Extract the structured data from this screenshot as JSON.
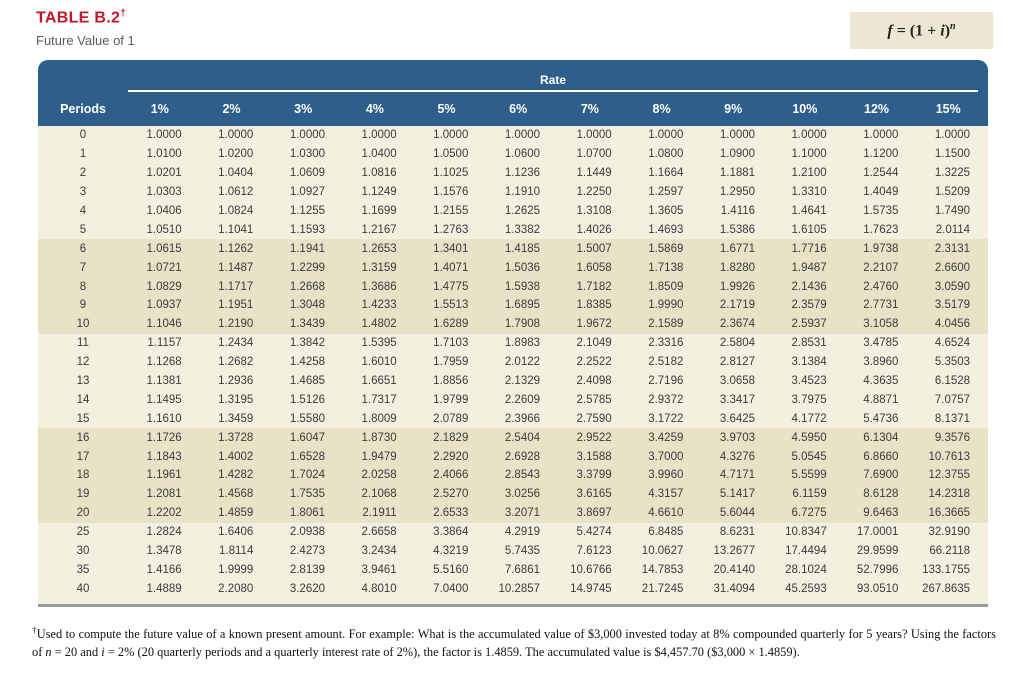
{
  "title": "TABLE B.2",
  "title_dagger": "†",
  "subtitle": "Future Value of 1",
  "formula_segments": [
    {
      "t": "f",
      "i": true
    },
    {
      "t": " = (1 + "
    },
    {
      "t": "i",
      "i": true
    },
    {
      "t": ")"
    },
    {
      "t": "n",
      "i": true,
      "sup": true
    }
  ],
  "colors": {
    "header_blue": "#2e5f8c",
    "title_red": "#c0182a",
    "band_light": "#f3f0e0",
    "band_dark": "#e8e2c7",
    "formula_box_bg": "#ece7d2",
    "bottom_rule_gray": "#97999b"
  },
  "table": {
    "rate_label": "Rate",
    "periods_label": "Periods",
    "rate_headers": [
      "1%",
      "2%",
      "3%",
      "4%",
      "5%",
      "6%",
      "7%",
      "8%",
      "9%",
      "10%",
      "12%",
      "15%"
    ],
    "dark_band_row_indices": [
      [
        6,
        10
      ],
      [
        16,
        20
      ]
    ],
    "rows": [
      {
        "period": "0",
        "values": [
          "1.0000",
          "1.0000",
          "1.0000",
          "1.0000",
          "1.0000",
          "1.0000",
          "1.0000",
          "1.0000",
          "1.0000",
          "1.0000",
          "1.0000",
          "1.0000"
        ]
      },
      {
        "period": "1",
        "values": [
          "1.0100",
          "1.0200",
          "1.0300",
          "1.0400",
          "1.0500",
          "1.0600",
          "1.0700",
          "1.0800",
          "1.0900",
          "1.1000",
          "1.1200",
          "1.1500"
        ]
      },
      {
        "period": "2",
        "values": [
          "1.0201",
          "1.0404",
          "1.0609",
          "1.0816",
          "1.1025",
          "1.1236",
          "1.1449",
          "1.1664",
          "1.1881",
          "1.2100",
          "1.2544",
          "1.3225"
        ]
      },
      {
        "period": "3",
        "values": [
          "1.0303",
          "1.0612",
          "1.0927",
          "1.1249",
          "1.1576",
          "1.1910",
          "1.2250",
          "1.2597",
          "1.2950",
          "1.3310",
          "1.4049",
          "1.5209"
        ]
      },
      {
        "period": "4",
        "values": [
          "1.0406",
          "1.0824",
          "1.1255",
          "1.1699",
          "1.2155",
          "1.2625",
          "1.3108",
          "1.3605",
          "1.4116",
          "1.4641",
          "1.5735",
          "1.7490"
        ]
      },
      {
        "period": "5",
        "values": [
          "1.0510",
          "1.1041",
          "1.1593",
          "1.2167",
          "1.2763",
          "1.3382",
          "1.4026",
          "1.4693",
          "1.5386",
          "1.6105",
          "1.7623",
          "2.0114"
        ]
      },
      {
        "period": "6",
        "values": [
          "1.0615",
          "1.1262",
          "1.1941",
          "1.2653",
          "1.3401",
          "1.4185",
          "1.5007",
          "1.5869",
          "1.6771",
          "1.7716",
          "1.9738",
          "2.3131"
        ]
      },
      {
        "period": "7",
        "values": [
          "1.0721",
          "1.1487",
          "1.2299",
          "1.3159",
          "1.4071",
          "1.5036",
          "1.6058",
          "1.7138",
          "1.8280",
          "1.9487",
          "2.2107",
          "2.6600"
        ]
      },
      {
        "period": "8",
        "values": [
          "1.0829",
          "1.1717",
          "1.2668",
          "1.3686",
          "1.4775",
          "1.5938",
          "1.7182",
          "1.8509",
          "1.9926",
          "2.1436",
          "2.4760",
          "3.0590"
        ]
      },
      {
        "period": "9",
        "values": [
          "1.0937",
          "1.1951",
          "1.3048",
          "1.4233",
          "1.5513",
          "1.6895",
          "1.8385",
          "1.9990",
          "2.1719",
          "2.3579",
          "2.7731",
          "3.5179"
        ]
      },
      {
        "period": "10",
        "values": [
          "1.1046",
          "1.2190",
          "1.3439",
          "1.4802",
          "1.6289",
          "1.7908",
          "1.9672",
          "2.1589",
          "2.3674",
          "2.5937",
          "3.1058",
          "4.0456"
        ]
      },
      {
        "period": "11",
        "values": [
          "1.1157",
          "1.2434",
          "1.3842",
          "1.5395",
          "1.7103",
          "1.8983",
          "2.1049",
          "2.3316",
          "2.5804",
          "2.8531",
          "3.4785",
          "4.6524"
        ]
      },
      {
        "period": "12",
        "values": [
          "1.1268",
          "1.2682",
          "1.4258",
          "1.6010",
          "1.7959",
          "2.0122",
          "2.2522",
          "2.5182",
          "2.8127",
          "3.1384",
          "3.8960",
          "5.3503"
        ]
      },
      {
        "period": "13",
        "values": [
          "1.1381",
          "1.2936",
          "1.4685",
          "1.6651",
          "1.8856",
          "2.1329",
          "2.4098",
          "2.7196",
          "3.0658",
          "3.4523",
          "4.3635",
          "6.1528"
        ]
      },
      {
        "period": "14",
        "values": [
          "1.1495",
          "1.3195",
          "1.5126",
          "1.7317",
          "1.9799",
          "2.2609",
          "2.5785",
          "2.9372",
          "3.3417",
          "3.7975",
          "4.8871",
          "7.0757"
        ]
      },
      {
        "period": "15",
        "values": [
          "1.1610",
          "1.3459",
          "1.5580",
          "1.8009",
          "2.0789",
          "2.3966",
          "2.7590",
          "3.1722",
          "3.6425",
          "4.1772",
          "5.4736",
          "8.1371"
        ]
      },
      {
        "period": "16",
        "values": [
          "1.1726",
          "1.3728",
          "1.6047",
          "1.8730",
          "2.1829",
          "2.5404",
          "2.9522",
          "3.4259",
          "3.9703",
          "4.5950",
          "6.1304",
          "9.3576"
        ]
      },
      {
        "period": "17",
        "values": [
          "1.1843",
          "1.4002",
          "1.6528",
          "1.9479",
          "2.2920",
          "2.6928",
          "3.1588",
          "3.7000",
          "4.3276",
          "5.0545",
          "6.8660",
          "10.7613"
        ]
      },
      {
        "period": "18",
        "values": [
          "1.1961",
          "1.4282",
          "1.7024",
          "2.0258",
          "2.4066",
          "2.8543",
          "3.3799",
          "3.9960",
          "4.7171",
          "5.5599",
          "7.6900",
          "12.3755"
        ]
      },
      {
        "period": "19",
        "values": [
          "1.2081",
          "1.4568",
          "1.7535",
          "2.1068",
          "2.5270",
          "3.0256",
          "3.6165",
          "4.3157",
          "5.1417",
          "6.1159",
          "8.6128",
          "14.2318"
        ]
      },
      {
        "period": "20",
        "values": [
          "1.2202",
          "1.4859",
          "1.8061",
          "2.1911",
          "2.6533",
          "3.2071",
          "3.8697",
          "4.6610",
          "5.6044",
          "6.7275",
          "9.6463",
          "16.3665"
        ]
      },
      {
        "period": "25",
        "values": [
          "1.2824",
          "1.6406",
          "2.0938",
          "2.6658",
          "3.3864",
          "4.2919",
          "5.4274",
          "6.8485",
          "8.6231",
          "10.8347",
          "17.0001",
          "32.9190"
        ]
      },
      {
        "period": "30",
        "values": [
          "1.3478",
          "1.8114",
          "2.4273",
          "3.2434",
          "4.3219",
          "5.7435",
          "7.6123",
          "10.0627",
          "13.2677",
          "17.4494",
          "29.9599",
          "66.2118"
        ]
      },
      {
        "period": "35",
        "values": [
          "1.4166",
          "1.9999",
          "2.8139",
          "3.9461",
          "5.5160",
          "7.6861",
          "10.6766",
          "14.7853",
          "20.4140",
          "28.1024",
          "52.7996",
          "133.1755"
        ]
      },
      {
        "period": "40",
        "values": [
          "1.4889",
          "2.2080",
          "3.2620",
          "4.8010",
          "7.0400",
          "10.2857",
          "14.9745",
          "21.7245",
          "31.4094",
          "45.2593",
          "93.0510",
          "267.8635"
        ]
      }
    ]
  },
  "footnote_segments": [
    {
      "t": "†",
      "sup": true
    },
    {
      "t": "Used to compute the future value of a known present amount. For example: What is the accumulated value of $3,000 invested today at 8% compounded quarterly for 5 years? Using the factors of "
    },
    {
      "t": "n",
      "i": true
    },
    {
      "t": " = 20 and "
    },
    {
      "t": "i",
      "i": true
    },
    {
      "t": " = 2% (20 quarterly periods and a quarterly interest rate of 2%), the factor is 1.4859. The accumulated value is $4,457.70 ($3,000 × 1.4859)."
    }
  ]
}
